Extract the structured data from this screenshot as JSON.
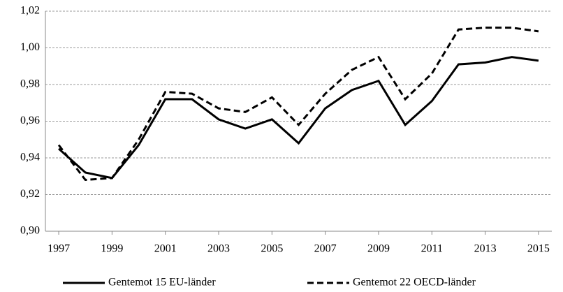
{
  "chart_data": {
    "type": "line",
    "x": [
      1997,
      1998,
      1999,
      2000,
      2001,
      2002,
      2003,
      2004,
      2005,
      2006,
      2007,
      2008,
      2009,
      2010,
      2011,
      2012,
      2013,
      2014,
      2015
    ],
    "series": [
      {
        "name": "Gentemot 15 EU-länder",
        "color": "#000000",
        "dash": "solid",
        "values": [
          0.945,
          0.932,
          0.929,
          0.947,
          0.972,
          0.972,
          0.961,
          0.956,
          0.961,
          0.948,
          0.967,
          0.977,
          0.982,
          0.958,
          0.971,
          0.991,
          0.992,
          0.995,
          0.993
        ]
      },
      {
        "name": "Gentemot 22 OECD-länder",
        "color": "#000000",
        "dash": "dashed",
        "values": [
          0.947,
          0.928,
          0.929,
          0.95,
          0.976,
          0.975,
          0.967,
          0.965,
          0.973,
          0.958,
          0.975,
          0.988,
          0.995,
          0.972,
          0.986,
          1.01,
          1.011,
          1.011,
          1.009
        ]
      }
    ],
    "xlim": [
      1996.5,
      2015.5
    ],
    "xticks": [
      1997,
      1999,
      2001,
      2003,
      2005,
      2007,
      2009,
      2011,
      2013,
      2015
    ],
    "ylim": [
      0.9,
      1.02
    ],
    "yticks": [
      {
        "value": 0.9,
        "label": "0,90"
      },
      {
        "value": 0.92,
        "label": "0,92"
      },
      {
        "value": 0.94,
        "label": "0,94"
      },
      {
        "value": 0.96,
        "label": "0,96"
      },
      {
        "value": 0.98,
        "label": "0,98"
      },
      {
        "value": 1.0,
        "label": "1,00"
      },
      {
        "value": 1.02,
        "label": "1,02"
      }
    ],
    "grid": true,
    "legend": "bottom"
  }
}
